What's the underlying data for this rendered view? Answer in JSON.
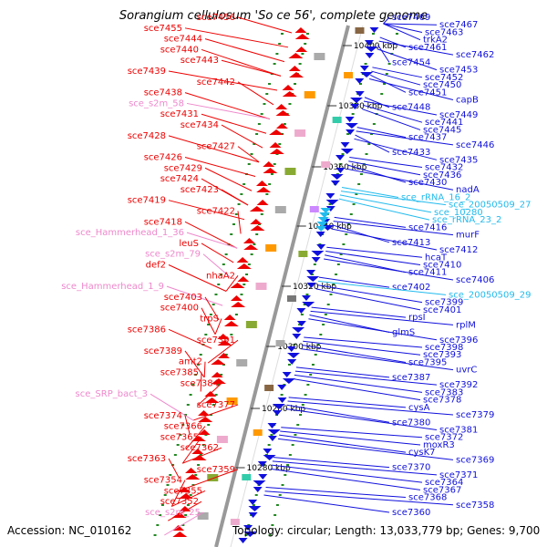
{
  "title": "Sorangium cellulosum 'So ce 56', complete genome",
  "footer": {
    "accession": "Accession: NC_010162",
    "summary": "Topology: circular; Length: 13,033,779 bp; Genes: 9,700"
  },
  "colors": {
    "forward_gene": "#ee0000",
    "reverse_gene": "#1010dd",
    "forward_rna": "#ee88cc",
    "reverse_rna": "#22bbee",
    "axis": "#999999",
    "tick": "#228822"
  },
  "scale_ticks": [
    "10400 kbp",
    "10380 kbp",
    "10360 kbp",
    "10340 kbp",
    "10320 kbp",
    "10300 kbp",
    "10280 kbp",
    "10280 kbp"
  ],
  "left_labels": [
    {
      "text": "sce7456",
      "kind": "gene"
    },
    {
      "text": "sce7455",
      "kind": "gene"
    },
    {
      "text": "sce7444",
      "kind": "gene"
    },
    {
      "text": "sce7440",
      "kind": "gene"
    },
    {
      "text": "sce7443",
      "kind": "gene"
    },
    {
      "text": "sce7439",
      "kind": "gene"
    },
    {
      "text": "sce7442",
      "kind": "gene"
    },
    {
      "text": "sce7438",
      "kind": "gene"
    },
    {
      "text": "sce_s2m_58",
      "kind": "rna"
    },
    {
      "text": "sce7431",
      "kind": "gene"
    },
    {
      "text": "sce7434",
      "kind": "gene"
    },
    {
      "text": "sce7428",
      "kind": "gene"
    },
    {
      "text": "sce7427",
      "kind": "gene"
    },
    {
      "text": "sce7426",
      "kind": "gene"
    },
    {
      "text": "sce7429",
      "kind": "gene"
    },
    {
      "text": "sce7424",
      "kind": "gene"
    },
    {
      "text": "sce7423",
      "kind": "gene"
    },
    {
      "text": "sce7419",
      "kind": "gene"
    },
    {
      "text": "sce7422",
      "kind": "gene"
    },
    {
      "text": "sce7418",
      "kind": "gene"
    },
    {
      "text": "sce_Hammerhead_1_36",
      "kind": "rna"
    },
    {
      "text": "leuS",
      "kind": "gene"
    },
    {
      "text": "sce_s2m_79",
      "kind": "rna"
    },
    {
      "text": "def2",
      "kind": "gene"
    },
    {
      "text": "nhaA2",
      "kind": "gene"
    },
    {
      "text": "sce_Hammerhead_1_9",
      "kind": "rna"
    },
    {
      "text": "sce7403",
      "kind": "gene"
    },
    {
      "text": "sce7400",
      "kind": "gene"
    },
    {
      "text": "trpS",
      "kind": "gene"
    },
    {
      "text": "sce7386",
      "kind": "gene"
    },
    {
      "text": "sce7391",
      "kind": "gene"
    },
    {
      "text": "sce7389",
      "kind": "gene"
    },
    {
      "text": "amt2",
      "kind": "gene"
    },
    {
      "text": "sce7385",
      "kind": "gene"
    },
    {
      "text": "sce7384",
      "kind": "gene"
    },
    {
      "text": "sce_SRP_bact_3",
      "kind": "rna"
    },
    {
      "text": "sce7377",
      "kind": "gene"
    },
    {
      "text": "sce7374",
      "kind": "gene"
    },
    {
      "text": "sce7366",
      "kind": "gene"
    },
    {
      "text": "sce7365",
      "kind": "gene"
    },
    {
      "text": "sce7362",
      "kind": "gene"
    },
    {
      "text": "sce7363",
      "kind": "gene"
    },
    {
      "text": "sce7359",
      "kind": "gene"
    },
    {
      "text": "sce7354",
      "kind": "gene"
    },
    {
      "text": "sce7355",
      "kind": "gene"
    },
    {
      "text": "sce7352",
      "kind": "gene"
    },
    {
      "text": "sce_s2m_25",
      "kind": "rna"
    }
  ],
  "right_labels": [
    {
      "text": "sce7469",
      "kind": "gene"
    },
    {
      "text": "sce7467",
      "kind": "gene"
    },
    {
      "text": "sce7463",
      "kind": "gene"
    },
    {
      "text": "trkA2",
      "kind": "gene"
    },
    {
      "text": "sce7461",
      "kind": "gene"
    },
    {
      "text": "sce7462",
      "kind": "gene"
    },
    {
      "text": "sce7454",
      "kind": "gene"
    },
    {
      "text": "sce7453",
      "kind": "gene"
    },
    {
      "text": "sce7452",
      "kind": "gene"
    },
    {
      "text": "sce7450",
      "kind": "gene"
    },
    {
      "text": "sce7451",
      "kind": "gene"
    },
    {
      "text": "capB",
      "kind": "gene"
    },
    {
      "text": "sce7448",
      "kind": "gene"
    },
    {
      "text": "sce7449",
      "kind": "gene"
    },
    {
      "text": "sce7441",
      "kind": "gene"
    },
    {
      "text": "sce7445",
      "kind": "gene"
    },
    {
      "text": "sce7437",
      "kind": "gene"
    },
    {
      "text": "sce7446",
      "kind": "gene"
    },
    {
      "text": "sce7433",
      "kind": "gene"
    },
    {
      "text": "sce7435",
      "kind": "gene"
    },
    {
      "text": "sce7432",
      "kind": "gene"
    },
    {
      "text": "sce7436",
      "kind": "gene"
    },
    {
      "text": "sce7430",
      "kind": "gene"
    },
    {
      "text": "nadA",
      "kind": "gene"
    },
    {
      "text": "sce_rRNA_16_2",
      "kind": "rna"
    },
    {
      "text": "sce_20050509_27",
      "kind": "rna"
    },
    {
      "text": "sce_10280",
      "kind": "rna"
    },
    {
      "text": "sce_rRNA_23_2",
      "kind": "rna"
    },
    {
      "text": "sce7416",
      "kind": "gene"
    },
    {
      "text": "murF",
      "kind": "gene"
    },
    {
      "text": "sce7413",
      "kind": "gene"
    },
    {
      "text": "sce7412",
      "kind": "gene"
    },
    {
      "text": "hcaT",
      "kind": "gene"
    },
    {
      "text": "sce7410",
      "kind": "gene"
    },
    {
      "text": "sce7411",
      "kind": "gene"
    },
    {
      "text": "sce7406",
      "kind": "gene"
    },
    {
      "text": "sce7402",
      "kind": "gene"
    },
    {
      "text": "sce_20050509_29",
      "kind": "rna"
    },
    {
      "text": "sce7399",
      "kind": "gene"
    },
    {
      "text": "sce7401",
      "kind": "gene"
    },
    {
      "text": "rpsI",
      "kind": "gene"
    },
    {
      "text": "rplM",
      "kind": "gene"
    },
    {
      "text": "glmS",
      "kind": "gene"
    },
    {
      "text": "sce7396",
      "kind": "gene"
    },
    {
      "text": "sce7398",
      "kind": "gene"
    },
    {
      "text": "sce7393",
      "kind": "gene"
    },
    {
      "text": "sce7395",
      "kind": "gene"
    },
    {
      "text": "uvrC",
      "kind": "gene"
    },
    {
      "text": "sce7387",
      "kind": "gene"
    },
    {
      "text": "sce7392",
      "kind": "gene"
    },
    {
      "text": "sce7383",
      "kind": "gene"
    },
    {
      "text": "sce7378",
      "kind": "gene"
    },
    {
      "text": "cysA",
      "kind": "gene"
    },
    {
      "text": "sce7379",
      "kind": "gene"
    },
    {
      "text": "sce7380",
      "kind": "gene"
    },
    {
      "text": "sce7381",
      "kind": "gene"
    },
    {
      "text": "sce7372",
      "kind": "gene"
    },
    {
      "text": "moxR3",
      "kind": "gene"
    },
    {
      "text": "cysK7",
      "kind": "gene"
    },
    {
      "text": "sce7369",
      "kind": "gene"
    },
    {
      "text": "sce7370",
      "kind": "gene"
    },
    {
      "text": "sce7371",
      "kind": "gene"
    },
    {
      "text": "sce7364",
      "kind": "gene"
    },
    {
      "text": "sce7367",
      "kind": "gene"
    },
    {
      "text": "sce7368",
      "kind": "gene"
    },
    {
      "text": "sce7358",
      "kind": "gene"
    },
    {
      "text": "sce7360",
      "kind": "gene"
    }
  ]
}
